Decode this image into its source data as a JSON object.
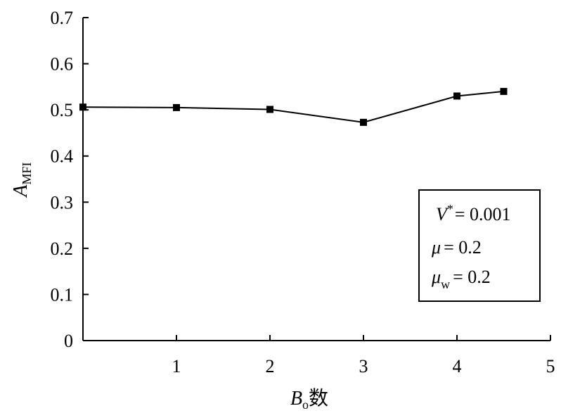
{
  "chart_data": {
    "type": "line",
    "x": [
      0,
      1,
      2,
      3,
      4,
      4.5
    ],
    "series": [
      {
        "values": [
          0.506,
          0.505,
          0.501,
          0.473,
          0.53,
          0.54
        ]
      }
    ],
    "xlim": [
      0,
      5
    ],
    "ylim": [
      0,
      0.7
    ],
    "x_ticks": [
      1,
      2,
      3,
      4,
      5
    ],
    "y_ticks": [
      0,
      0.1,
      0.2,
      0.3,
      0.4,
      0.5,
      0.6,
      0.7
    ],
    "x_tick_labels": [
      "1",
      "2",
      "3",
      "4",
      "5"
    ],
    "y_tick_labels": [
      "0",
      "0.1",
      "0.2",
      "0.3",
      "0.4",
      "0.5",
      "0.6",
      "0.7"
    ],
    "xlabel": {
      "main": "B",
      "sub": "o",
      "suffix": "数"
    },
    "ylabel": {
      "main": "A",
      "sub": "MFI"
    },
    "annotation": [
      {
        "var": "V",
        "sup": "*",
        "sub": "",
        "value": "= 0.001"
      },
      {
        "var": "μ",
        "sup": "",
        "sub": "",
        "value": "= 0.2"
      },
      {
        "var": "μ",
        "sup": "",
        "sub": "w",
        "value": "= 0.2"
      }
    ],
    "annotation_position": "lower-right",
    "grid": false,
    "marker": "square",
    "line_color": "#000000"
  }
}
